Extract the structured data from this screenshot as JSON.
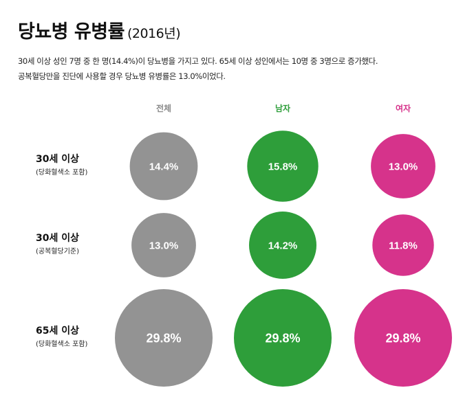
{
  "title": "당뇨병 유병률",
  "title_year": "(2016년)",
  "description_lines": [
    "30세 이상 성인 7명 중 한 명(14.4%)이 당뇨병을 가지고 있다. 65세 이상 성인에서는 10명 중 3명으로 증가했다.",
    "공복혈당만을 진단에 사용할 경우 당뇨병 유병률은 13.0%이었다."
  ],
  "colors": {
    "전체": "#939393",
    "남자": "#2e9e3a",
    "여자": "#d6338b",
    "header_전체": "#8a8a8a"
  },
  "chart_data": {
    "type": "bubble",
    "categories": [
      "전체",
      "남자",
      "여자"
    ],
    "rows": [
      {
        "label": "30세 이상",
        "sublabel": "(당화혈색소 포함)",
        "values": [
          14.4,
          15.8,
          13.0
        ]
      },
      {
        "label": "30세 이상",
        "sublabel": "(공복혈당기준)",
        "values": [
          13.0,
          14.2,
          11.8
        ]
      },
      {
        "label": "65세 이상",
        "sublabel": "(당화혈색소 포함)",
        "values": [
          29.8,
          29.8,
          29.8
        ]
      }
    ],
    "value_suffix": "%"
  }
}
